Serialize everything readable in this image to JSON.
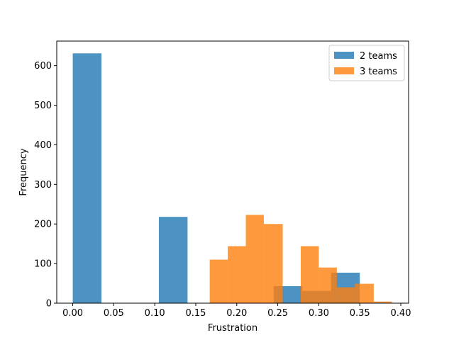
{
  "chart_data": {
    "type": "histogram",
    "title": "",
    "xlabel": "Frustration",
    "ylabel": "Frequency",
    "xlim": [
      -0.0195,
      0.4095
    ],
    "ylim": [
      0,
      662
    ],
    "xticks": [
      0.0,
      0.05,
      0.1,
      0.15,
      0.2,
      0.25,
      0.3,
      0.35,
      0.4
    ],
    "xtick_labels": [
      "0.00",
      "0.05",
      "0.10",
      "0.15",
      "0.20",
      "0.25",
      "0.30",
      "0.35",
      "0.40"
    ],
    "yticks": [
      0,
      100,
      200,
      300,
      400,
      500,
      600
    ],
    "ytick_labels": [
      "0",
      "100",
      "200",
      "300",
      "400",
      "500",
      "600"
    ],
    "legend_position": "top-right",
    "series": [
      {
        "name": "2 teams",
        "color": "#1f77b4",
        "opacity": 0.8,
        "bins": [
          {
            "x0": 0.0,
            "x1": 0.035,
            "value": 631
          },
          {
            "x0": 0.035,
            "x1": 0.07,
            "value": 0
          },
          {
            "x0": 0.07,
            "x1": 0.105,
            "value": 0
          },
          {
            "x0": 0.105,
            "x1": 0.14,
            "value": 218
          },
          {
            "x0": 0.14,
            "x1": 0.175,
            "value": 0
          },
          {
            "x0": 0.175,
            "x1": 0.21,
            "value": 0
          },
          {
            "x0": 0.21,
            "x1": 0.245,
            "value": 0
          },
          {
            "x0": 0.245,
            "x1": 0.28,
            "value": 43
          },
          {
            "x0": 0.28,
            "x1": 0.315,
            "value": 31
          },
          {
            "x0": 0.315,
            "x1": 0.35,
            "value": 77
          }
        ]
      },
      {
        "name": "3 teams",
        "color": "#ff7f0e",
        "opacity": 0.8,
        "bins": [
          {
            "x0": 0.167,
            "x1": 0.189,
            "value": 110
          },
          {
            "x0": 0.189,
            "x1": 0.211,
            "value": 144
          },
          {
            "x0": 0.211,
            "x1": 0.233,
            "value": 223
          },
          {
            "x0": 0.233,
            "x1": 0.256,
            "value": 200
          },
          {
            "x0": 0.256,
            "x1": 0.278,
            "value": 0
          },
          {
            "x0": 0.278,
            "x1": 0.3,
            "value": 144
          },
          {
            "x0": 0.3,
            "x1": 0.322,
            "value": 90
          },
          {
            "x0": 0.322,
            "x1": 0.344,
            "value": 40
          },
          {
            "x0": 0.344,
            "x1": 0.367,
            "value": 49
          },
          {
            "x0": 0.367,
            "x1": 0.389,
            "value": 4
          }
        ]
      }
    ]
  }
}
